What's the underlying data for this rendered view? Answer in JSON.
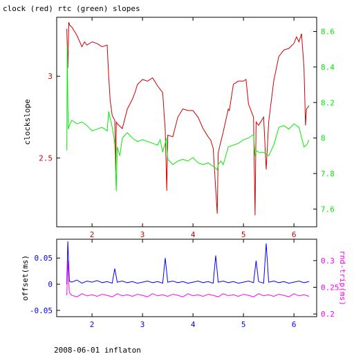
{
  "title": "clock (red) rtc (green) slopes",
  "footer": "2008-06-01 inflaton",
  "colors": {
    "red": "#cc0000",
    "green": "#00ee00",
    "blue": "#0000ff",
    "magenta": "#ff00ff",
    "axis": "#000000"
  },
  "chart_data": [
    {
      "type": "line",
      "title": "clock (red) rtc (green) slopes",
      "xlabel": "",
      "ylabel": "clockslope",
      "y2label": "",
      "xlim": [
        1.3,
        6.45
      ],
      "ylim": [
        2.08,
        3.36
      ],
      "y2lim": [
        7.5,
        8.68
      ],
      "x_ticks": [
        "2",
        "3",
        "4",
        "5",
        "6"
      ],
      "y_ticks": [
        "2.5",
        "3"
      ],
      "y2_ticks": [
        "7.6",
        "7.8",
        "8",
        "8.2",
        "8.4",
        "8.6"
      ],
      "grid": false,
      "series": [
        {
          "name": "clock",
          "axis": "left",
          "color": "#cc0000",
          "x": [
            1.5,
            1.52,
            1.54,
            1.56,
            1.6,
            1.7,
            1.8,
            1.85,
            1.9,
            2.0,
            2.1,
            2.2,
            2.3,
            2.33,
            2.36,
            2.4,
            2.45,
            2.47,
            2.48,
            2.5,
            2.6,
            2.7,
            2.8,
            2.85,
            2.9,
            3.0,
            3.1,
            3.2,
            3.3,
            3.4,
            3.45,
            3.48,
            3.5,
            3.6,
            3.7,
            3.8,
            3.9,
            4.0,
            4.1,
            4.2,
            4.3,
            4.35,
            4.4,
            4.48,
            4.5,
            4.52,
            4.6,
            4.7,
            4.72,
            4.8,
            4.9,
            5.0,
            5.05,
            5.1,
            5.2,
            5.23,
            5.25,
            5.3,
            5.4,
            5.45,
            5.5,
            5.6,
            5.7,
            5.8,
            5.9,
            6.0,
            6.05,
            6.1,
            6.15,
            6.2,
            6.23,
            6.25,
            6.3
          ],
          "y": [
            3.29,
            3.05,
            3.33,
            3.31,
            3.3,
            3.25,
            3.18,
            3.21,
            3.19,
            3.21,
            3.2,
            3.18,
            3.19,
            3.0,
            2.85,
            2.76,
            2.73,
            2.42,
            2.72,
            2.71,
            2.68,
            2.8,
            2.86,
            2.9,
            2.95,
            2.98,
            2.97,
            2.99,
            2.94,
            2.9,
            2.67,
            2.3,
            2.64,
            2.63,
            2.75,
            2.8,
            2.79,
            2.79,
            2.75,
            2.68,
            2.63,
            2.61,
            2.56,
            2.16,
            2.53,
            2.56,
            2.66,
            2.8,
            2.79,
            2.95,
            2.97,
            2.97,
            2.98,
            2.83,
            2.75,
            2.15,
            2.72,
            2.7,
            2.75,
            2.43,
            2.72,
            2.97,
            3.12,
            3.16,
            3.17,
            3.2,
            3.24,
            3.21,
            3.26,
            3.05,
            2.7,
            2.8,
            2.82
          ]
        },
        {
          "name": "rtc",
          "axis": "right",
          "color": "#00ee00",
          "x": [
            1.5,
            1.51,
            1.52,
            1.53,
            1.55,
            1.6,
            1.7,
            1.8,
            1.9,
            2.0,
            2.1,
            2.2,
            2.3,
            2.33,
            2.4,
            2.45,
            2.48,
            2.5,
            2.55,
            2.6,
            2.7,
            2.8,
            2.9,
            3.0,
            3.1,
            3.2,
            3.3,
            3.35,
            3.4,
            3.45,
            3.47,
            3.5,
            3.6,
            3.7,
            3.8,
            3.9,
            4.0,
            4.1,
            4.2,
            4.3,
            4.4,
            4.45,
            4.48,
            4.5,
            4.55,
            4.6,
            4.7,
            4.8,
            4.9,
            5.0,
            5.1,
            5.2,
            5.23,
            5.25,
            5.3,
            5.4,
            5.5,
            5.6,
            5.7,
            5.8,
            5.9,
            6.0,
            6.1,
            6.2,
            6.25,
            6.3
          ],
          "y": [
            7.93,
            8.52,
            8.2,
            8.05,
            8.07,
            8.1,
            8.08,
            8.09,
            8.07,
            8.04,
            8.05,
            8.06,
            8.04,
            8.15,
            8.06,
            7.97,
            7.7,
            7.95,
            7.9,
            8.0,
            8.03,
            8.0,
            7.98,
            7.99,
            7.98,
            7.97,
            7.96,
            7.99,
            7.92,
            7.97,
            8.0,
            7.88,
            7.85,
            7.87,
            7.88,
            7.87,
            7.89,
            7.86,
            7.85,
            7.86,
            7.84,
            7.83,
            7.82,
            7.85,
            7.87,
            7.85,
            7.95,
            7.96,
            7.97,
            7.99,
            8.0,
            8.02,
            7.9,
            7.93,
            7.92,
            7.92,
            7.9,
            7.96,
            8.06,
            8.07,
            8.05,
            8.08,
            8.06,
            7.95,
            7.96,
            7.99
          ]
        }
      ]
    },
    {
      "type": "line",
      "xlabel": "",
      "ylabel": "offset(ms)",
      "y2label": "rnd-trip(ms)",
      "xlim": [
        1.3,
        6.45
      ],
      "ylim": [
        -0.062,
        0.086
      ],
      "y2lim": [
        0.195,
        0.34
      ],
      "x_ticks": [
        "2",
        "3",
        "4",
        "5",
        "6"
      ],
      "y_ticks": [
        "-0.05",
        "0",
        "0.05"
      ],
      "y2_ticks": [
        "0.2",
        "0.25",
        "0.3"
      ],
      "grid": false,
      "series": [
        {
          "name": "offset",
          "axis": "left",
          "color": "#0000ff",
          "x": [
            1.5,
            1.52,
            1.55,
            1.6,
            1.7,
            1.8,
            1.9,
            2.0,
            2.1,
            2.2,
            2.3,
            2.4,
            2.45,
            2.5,
            2.6,
            2.7,
            2.8,
            2.9,
            3.0,
            3.1,
            3.2,
            3.3,
            3.4,
            3.45,
            3.5,
            3.6,
            3.7,
            3.8,
            3.9,
            4.0,
            4.1,
            4.2,
            4.3,
            4.4,
            4.45,
            4.5,
            4.6,
            4.7,
            4.8,
            4.9,
            5.0,
            5.1,
            5.2,
            5.25,
            5.3,
            5.4,
            5.45,
            5.5,
            5.6,
            5.7,
            5.8,
            5.9,
            6.0,
            6.1,
            6.2,
            6.3
          ],
          "y": [
            0.0,
            0.082,
            0.006,
            0.004,
            0.008,
            0.002,
            0.006,
            0.004,
            0.007,
            0.003,
            0.005,
            0.002,
            0.03,
            0.004,
            0.006,
            0.003,
            0.005,
            0.002,
            0.004,
            0.006,
            0.003,
            0.005,
            0.002,
            0.05,
            0.004,
            0.006,
            0.003,
            0.005,
            0.002,
            0.004,
            0.006,
            0.003,
            0.005,
            0.002,
            0.055,
            0.004,
            0.006,
            0.003,
            0.005,
            0.002,
            0.004,
            0.006,
            0.003,
            0.045,
            0.005,
            0.002,
            0.078,
            0.004,
            0.006,
            0.003,
            0.005,
            0.002,
            0.004,
            0.006,
            0.003,
            0.005
          ]
        },
        {
          "name": "rnd-trip",
          "axis": "right",
          "color": "#ff00ff",
          "x": [
            1.5,
            1.52,
            1.55,
            1.6,
            1.7,
            1.8,
            1.9,
            2.0,
            2.1,
            2.2,
            2.3,
            2.4,
            2.5,
            2.6,
            2.7,
            2.8,
            2.9,
            3.0,
            3.1,
            3.2,
            3.3,
            3.4,
            3.5,
            3.6,
            3.7,
            3.8,
            3.9,
            4.0,
            4.1,
            4.2,
            4.3,
            4.4,
            4.5,
            4.6,
            4.7,
            4.8,
            4.9,
            5.0,
            5.1,
            5.2,
            5.3,
            5.4,
            5.5,
            5.6,
            5.7,
            5.8,
            5.9,
            6.0,
            6.1,
            6.2,
            6.3
          ],
          "y": [
            0.235,
            0.3,
            0.24,
            0.235,
            0.232,
            0.238,
            0.234,
            0.236,
            0.233,
            0.237,
            0.235,
            0.232,
            0.238,
            0.234,
            0.236,
            0.233,
            0.237,
            0.235,
            0.232,
            0.238,
            0.234,
            0.236,
            0.233,
            0.237,
            0.235,
            0.232,
            0.238,
            0.234,
            0.236,
            0.233,
            0.237,
            0.235,
            0.232,
            0.238,
            0.234,
            0.236,
            0.233,
            0.237,
            0.235,
            0.232,
            0.238,
            0.234,
            0.236,
            0.233,
            0.237,
            0.235,
            0.232,
            0.238,
            0.234,
            0.236,
            0.233
          ]
        }
      ]
    }
  ]
}
